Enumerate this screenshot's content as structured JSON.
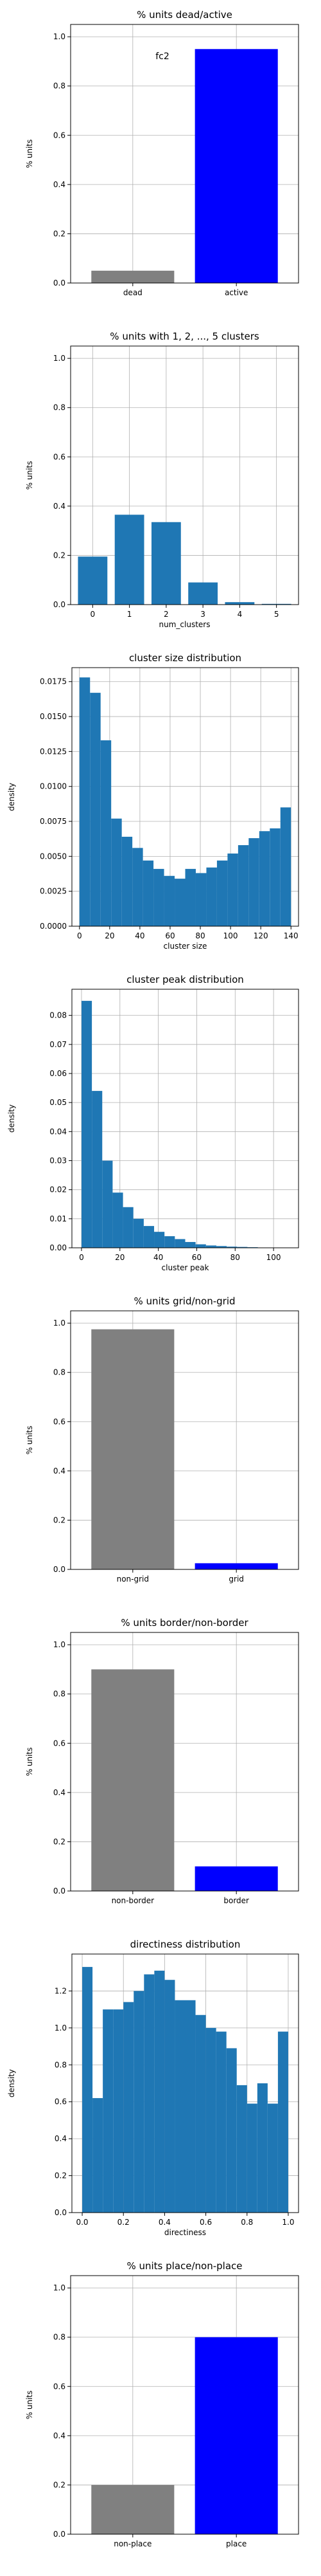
{
  "chart_data": [
    {
      "type": "bar",
      "title": "% units dead/active",
      "xlabel": "",
      "ylabel": "% units",
      "annotation": "fc2",
      "categories": [
        "dead",
        "active"
      ],
      "values": [
        0.05,
        0.95
      ],
      "colors": [
        "#808080",
        "#0000ff"
      ],
      "ylim": [
        0,
        1.05
      ],
      "yticks": [
        "0.0",
        "0.2",
        "0.4",
        "0.6",
        "0.8",
        "1.0"
      ],
      "grid": true
    },
    {
      "type": "bar",
      "title": "% units with 1, 2, ..., 5 clusters",
      "xlabel": "num_clusters",
      "ylabel": "% units",
      "categories": [
        "0",
        "1",
        "2",
        "3",
        "4",
        "5"
      ],
      "values": [
        0.195,
        0.365,
        0.335,
        0.09,
        0.01,
        0.003
      ],
      "colors": [
        "#1f77b4"
      ],
      "ylim": [
        0,
        1.05
      ],
      "yticks": [
        "0.0",
        "0.2",
        "0.4",
        "0.6",
        "0.8",
        "1.0"
      ],
      "grid": true
    },
    {
      "type": "bar",
      "histogram": true,
      "title": "cluster size distribution",
      "xlabel": "cluster size",
      "ylabel": "density",
      "bin_start": 0,
      "bin_width": 7,
      "values": [
        0.0178,
        0.0167,
        0.0133,
        0.0077,
        0.0064,
        0.0056,
        0.0047,
        0.0041,
        0.0036,
        0.0034,
        0.0041,
        0.0038,
        0.0042,
        0.0047,
        0.0052,
        0.0058,
        0.0063,
        0.0068,
        0.007,
        0.0085
      ],
      "colors": [
        "#1f77b4"
      ],
      "xlim": [
        -5,
        145
      ],
      "ylim": [
        0,
        0.0185
      ],
      "xticks": [
        "0",
        "20",
        "40",
        "60",
        "80",
        "100",
        "120",
        "140"
      ],
      "yticks": [
        "0.0000",
        "0.0025",
        "0.0050",
        "0.0075",
        "0.0100",
        "0.0125",
        "0.0150",
        "0.0175"
      ],
      "grid": true
    },
    {
      "type": "bar",
      "histogram": true,
      "title": "cluster peak distribution",
      "xlabel": "cluster peak",
      "ylabel": "density",
      "bin_start": 0,
      "bin_width": 5.4,
      "values": [
        0.085,
        0.054,
        0.03,
        0.019,
        0.014,
        0.01,
        0.0075,
        0.0055,
        0.004,
        0.003,
        0.002,
        0.0012,
        0.0008,
        0.0006,
        0.0004,
        0.0003,
        0.0002,
        0.0001,
        0.0001,
        0.0001
      ],
      "colors": [
        "#1f77b4"
      ],
      "xlim": [
        -5,
        113
      ],
      "ylim": [
        0,
        0.089
      ],
      "xticks": [
        "0",
        "20",
        "40",
        "60",
        "80",
        "100"
      ],
      "yticks": [
        "0.00",
        "0.01",
        "0.02",
        "0.03",
        "0.04",
        "0.05",
        "0.06",
        "0.07",
        "0.08"
      ],
      "grid": true
    },
    {
      "type": "bar",
      "title": "% units grid/non-grid",
      "xlabel": "",
      "ylabel": "% units",
      "categories": [
        "non-grid",
        "grid"
      ],
      "values": [
        0.975,
        0.025
      ],
      "colors": [
        "#808080",
        "#0000ff"
      ],
      "ylim": [
        0,
        1.05
      ],
      "yticks": [
        "0.0",
        "0.2",
        "0.4",
        "0.6",
        "0.8",
        "1.0"
      ],
      "grid": true
    },
    {
      "type": "bar",
      "title": "% units border/non-border",
      "xlabel": "",
      "ylabel": "% units",
      "categories": [
        "non-border",
        "border"
      ],
      "values": [
        0.9,
        0.1
      ],
      "colors": [
        "#808080",
        "#0000ff"
      ],
      "ylim": [
        0,
        1.05
      ],
      "yticks": [
        "0.0",
        "0.2",
        "0.4",
        "0.6",
        "0.8",
        "1.0"
      ],
      "grid": true
    },
    {
      "type": "bar",
      "histogram": true,
      "title": "directiness distribution",
      "xlabel": "directiness",
      "ylabel": "density",
      "bin_start": 0,
      "bin_width": 0.05,
      "values": [
        1.33,
        0.62,
        1.1,
        1.1,
        1.14,
        1.2,
        1.29,
        1.31,
        1.26,
        1.15,
        1.15,
        1.07,
        1.0,
        0.98,
        0.89,
        0.69,
        0.59,
        0.7,
        0.59,
        0.98
      ],
      "colors": [
        "#1f77b4"
      ],
      "xlim": [
        -0.05,
        1.05
      ],
      "ylim": [
        0,
        1.4
      ],
      "xticks": [
        "0.0",
        "0.2",
        "0.4",
        "0.6",
        "0.8",
        "1.0"
      ],
      "yticks": [
        "0.0",
        "0.2",
        "0.4",
        "0.6",
        "0.8",
        "1.0",
        "1.2"
      ],
      "grid": true
    },
    {
      "type": "bar",
      "title": "% units place/non-place",
      "xlabel": "",
      "ylabel": "% units",
      "categories": [
        "non-place",
        "place"
      ],
      "values": [
        0.2,
        0.8
      ],
      "colors": [
        "#808080",
        "#0000ff"
      ],
      "ylim": [
        0,
        1.05
      ],
      "yticks": [
        "0.0",
        "0.2",
        "0.4",
        "0.6",
        "0.8",
        "1.0"
      ],
      "grid": true
    }
  ]
}
